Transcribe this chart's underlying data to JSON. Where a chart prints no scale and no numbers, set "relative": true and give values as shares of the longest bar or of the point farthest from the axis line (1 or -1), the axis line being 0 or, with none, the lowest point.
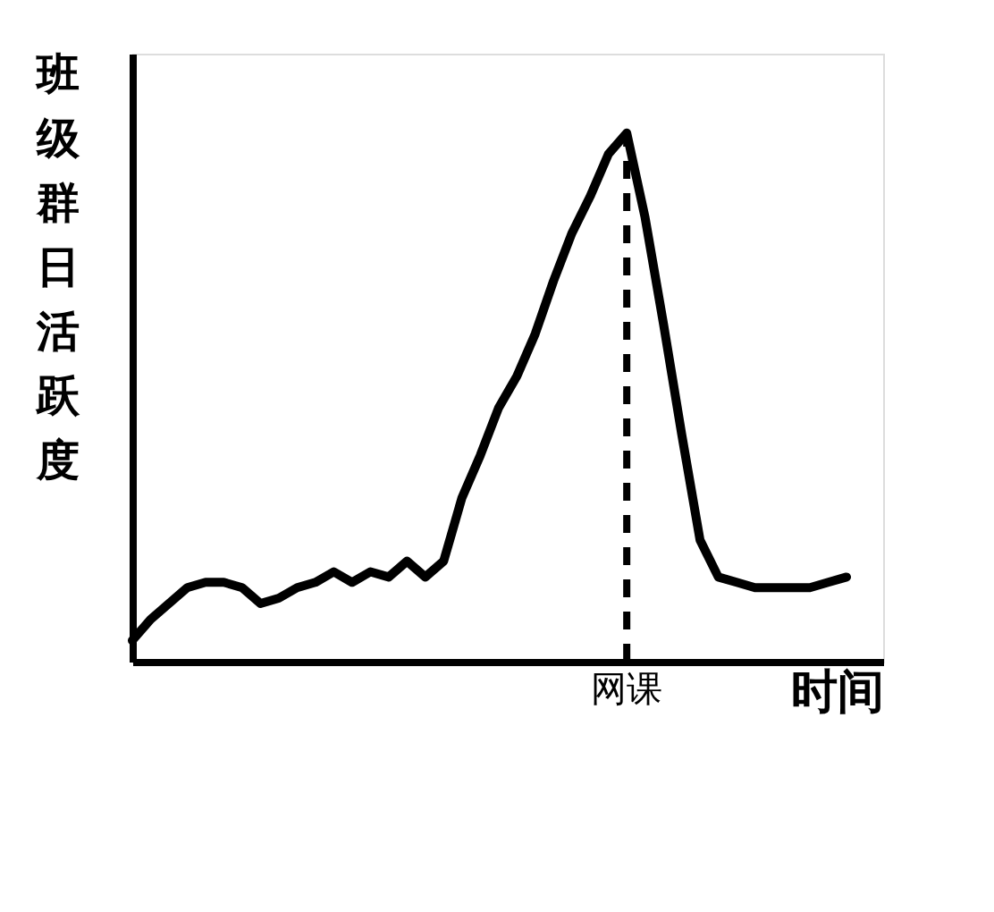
{
  "chart_data": {
    "type": "line",
    "relative": true,
    "ylabel": "班级群日活跃度",
    "xlabel": "时间",
    "categories": [
      null,
      null,
      null,
      null,
      null,
      null,
      null,
      null,
      null,
      null,
      null,
      null,
      null,
      null,
      null,
      null,
      null,
      null,
      null,
      null,
      null,
      null,
      null,
      null,
      null,
      null,
      null,
      null,
      null,
      null,
      null,
      null,
      null,
      null,
      null,
      null,
      null,
      null,
      null,
      null
    ],
    "series": [
      {
        "color": "#000000",
        "values": [
          0.04,
          0.08,
          0.11,
          0.14,
          0.15,
          0.15,
          0.14,
          0.11,
          0.12,
          0.14,
          0.15,
          0.17,
          0.15,
          0.17,
          0.16,
          0.19,
          0.16,
          0.19,
          0.31,
          0.39,
          0.48,
          0.54,
          0.62,
          0.72,
          0.81,
          0.88,
          0.96,
          1,
          0.84,
          0.64,
          0.43,
          0.23,
          0.16,
          0.15,
          0.14,
          0.14,
          0.14,
          0.14,
          0.15,
          0.16
        ]
      }
    ],
    "annotations": [
      "网课"
    ],
    "grid": false,
    "marker": "none",
    "line_style": "solid"
  }
}
